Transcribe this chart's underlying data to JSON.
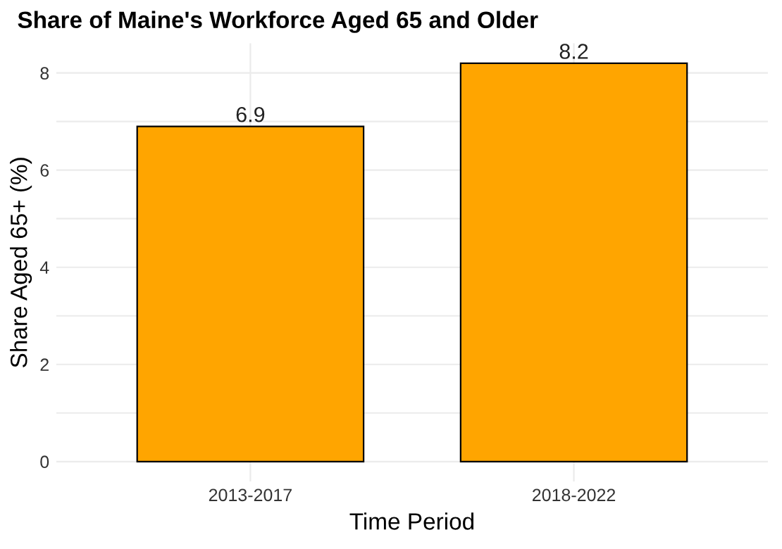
{
  "chart_data": {
    "type": "bar",
    "title": "Share of Maine's Workforce Aged 65 and Older",
    "xlabel": "Time Period",
    "ylabel": "Share Aged 65+ (%)",
    "categories": [
      "2013-2017",
      "2018-2022"
    ],
    "values": [
      6.9,
      8.2
    ],
    "color": "#ffa500",
    "data_labels": true,
    "ylim": [
      -0.41,
      8.61
    ],
    "yticks": [
      0,
      {
        "value": 1,
        "label": null
      },
      2,
      {
        "value": 3,
        "label": null
      },
      4,
      {
        "value": 5,
        "label": null
      },
      6,
      {
        "value": 7,
        "label": null
      },
      8
    ],
    "grid": true
  }
}
